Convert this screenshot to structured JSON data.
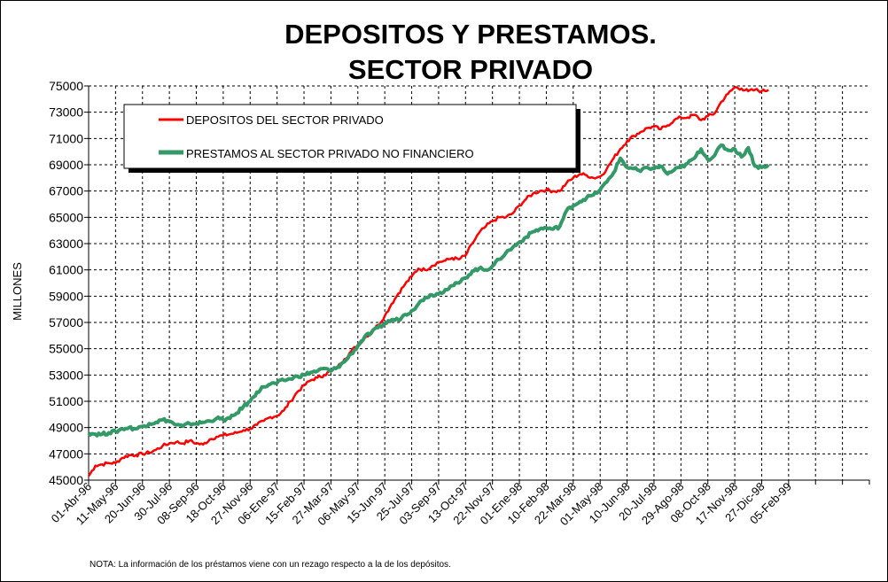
{
  "chart_data": {
    "type": "line",
    "title_line1": "DEPOSITOS Y PRESTAMOS.",
    "title_line2": "SECTOR PRIVADO",
    "ylabel": "MILLONES",
    "xlabel": "",
    "ylim": [
      45000,
      75000
    ],
    "yticks": [
      "45000",
      "47000",
      "49000",
      "51000",
      "53000",
      "55000",
      "57000",
      "59000",
      "61000",
      "63000",
      "65000",
      "67000",
      "69000",
      "71000",
      "73000",
      "75000"
    ],
    "x_tick_labels": [
      "01-Abr-96",
      "11-May-96",
      "20-Jun-96",
      "30-Jul-96",
      "08-Sep-96",
      "18-Oct-96",
      "27-Nov-96",
      "06-Ene-97",
      "15-Feb-97",
      "27-Mar-97",
      "06-May-97",
      "15-Jun-97",
      "25-Jul-97",
      "03-Sep-97",
      "13-Oct-97",
      "22-Nov-97",
      "01-Ene-98",
      "10-Feb-98",
      "22-Mar-98",
      "01-May-98",
      "10-Jun-98",
      "20-Jul-98",
      "29-Ago-98",
      "08-Oct-98",
      "17-Nov-98",
      "27-Dic-98",
      "05-Feb-99"
    ],
    "x_index_range": [
      0,
      29
    ],
    "grid": true,
    "legend_placement": "top-left",
    "series": [
      {
        "name": "DEPOSITOS DEL SECTOR PRIVADO",
        "color": "#ff0000",
        "points": [
          [
            0.0,
            45300
          ],
          [
            0.25,
            46100
          ],
          [
            0.5,
            46200
          ],
          [
            0.75,
            46300
          ],
          [
            1.0,
            46300
          ],
          [
            1.25,
            46700
          ],
          [
            1.5,
            46900
          ],
          [
            1.75,
            46900
          ],
          [
            2.0,
            47000
          ],
          [
            2.25,
            47100
          ],
          [
            2.5,
            47300
          ],
          [
            2.75,
            47600
          ],
          [
            3.0,
            47800
          ],
          [
            3.25,
            47900
          ],
          [
            3.5,
            47800
          ],
          [
            3.75,
            48000
          ],
          [
            4.0,
            47800
          ],
          [
            4.25,
            47700
          ],
          [
            4.5,
            48100
          ],
          [
            4.75,
            48300
          ],
          [
            5.0,
            48400
          ],
          [
            5.25,
            48500
          ],
          [
            5.5,
            48600
          ],
          [
            5.75,
            48800
          ],
          [
            6.0,
            48900
          ],
          [
            6.25,
            49200
          ],
          [
            6.5,
            49500
          ],
          [
            6.75,
            49800
          ],
          [
            7.0,
            49900
          ],
          [
            7.25,
            50300
          ],
          [
            7.5,
            51000
          ],
          [
            7.75,
            51700
          ],
          [
            8.0,
            52200
          ],
          [
            8.25,
            52600
          ],
          [
            8.5,
            52800
          ],
          [
            8.75,
            53000
          ],
          [
            9.0,
            53300
          ],
          [
            9.25,
            53600
          ],
          [
            9.5,
            54200
          ],
          [
            9.75,
            54800
          ],
          [
            10.0,
            55300
          ],
          [
            10.25,
            55800
          ],
          [
            10.5,
            56300
          ],
          [
            10.75,
            56800
          ],
          [
            11.0,
            57500
          ],
          [
            11.25,
            58400
          ],
          [
            11.5,
            59200
          ],
          [
            11.75,
            59900
          ],
          [
            12.0,
            60500
          ],
          [
            12.25,
            61100
          ],
          [
            12.5,
            61000
          ],
          [
            12.75,
            61300
          ],
          [
            13.0,
            61600
          ],
          [
            13.25,
            61700
          ],
          [
            13.5,
            61900
          ],
          [
            13.75,
            61800
          ],
          [
            14.0,
            62100
          ],
          [
            14.25,
            63000
          ],
          [
            14.5,
            63800
          ],
          [
            14.75,
            64300
          ],
          [
            15.0,
            64700
          ],
          [
            15.25,
            65000
          ],
          [
            15.5,
            65000
          ],
          [
            15.75,
            65300
          ],
          [
            16.0,
            65900
          ],
          [
            16.25,
            66400
          ],
          [
            16.5,
            66800
          ],
          [
            16.75,
            67000
          ],
          [
            17.0,
            67100
          ],
          [
            17.25,
            67000
          ],
          [
            17.5,
            67000
          ],
          [
            17.75,
            67600
          ],
          [
            18.0,
            68000
          ],
          [
            18.25,
            68300
          ],
          [
            18.5,
            68200
          ],
          [
            18.75,
            68000
          ],
          [
            19.0,
            68100
          ],
          [
            19.25,
            68700
          ],
          [
            19.5,
            69500
          ],
          [
            19.75,
            70200
          ],
          [
            20.0,
            70800
          ],
          [
            20.25,
            71200
          ],
          [
            20.5,
            71500
          ],
          [
            20.75,
            71800
          ],
          [
            21.0,
            71900
          ],
          [
            21.25,
            71700
          ],
          [
            21.5,
            72000
          ],
          [
            21.75,
            72400
          ],
          [
            22.0,
            72600
          ],
          [
            22.25,
            72600
          ],
          [
            22.5,
            72800
          ],
          [
            22.75,
            72400
          ],
          [
            23.0,
            72700
          ],
          [
            23.25,
            72900
          ],
          [
            23.5,
            73800
          ],
          [
            23.75,
            74400
          ],
          [
            24.0,
            74900
          ],
          [
            24.25,
            74800
          ],
          [
            24.5,
            74600
          ],
          [
            24.75,
            74700
          ],
          [
            25.0,
            74600
          ],
          [
            25.25,
            74700
          ]
        ]
      },
      {
        "name": "PRESTAMOS AL SECTOR PRIVADO NO FINANCIERO",
        "color": "#339966",
        "points": [
          [
            0.0,
            48600
          ],
          [
            0.25,
            48500
          ],
          [
            0.5,
            48500
          ],
          [
            0.75,
            48600
          ],
          [
            1.0,
            48700
          ],
          [
            1.25,
            48900
          ],
          [
            1.5,
            49000
          ],
          [
            1.75,
            48900
          ],
          [
            2.0,
            49100
          ],
          [
            2.25,
            49300
          ],
          [
            2.5,
            49400
          ],
          [
            2.75,
            49600
          ],
          [
            3.0,
            49500
          ],
          [
            3.25,
            49200
          ],
          [
            3.5,
            49100
          ],
          [
            3.75,
            49300
          ],
          [
            4.0,
            49300
          ],
          [
            4.25,
            49400
          ],
          [
            4.5,
            49500
          ],
          [
            4.75,
            49700
          ],
          [
            5.0,
            49600
          ],
          [
            5.25,
            49700
          ],
          [
            5.5,
            50100
          ],
          [
            5.75,
            50600
          ],
          [
            6.0,
            51000
          ],
          [
            6.25,
            51700
          ],
          [
            6.5,
            52100
          ],
          [
            6.75,
            52300
          ],
          [
            7.0,
            52400
          ],
          [
            7.25,
            52600
          ],
          [
            7.5,
            52700
          ],
          [
            7.75,
            52900
          ],
          [
            8.0,
            53000
          ],
          [
            8.25,
            53200
          ],
          [
            8.5,
            53300
          ],
          [
            8.75,
            53500
          ],
          [
            9.0,
            53300
          ],
          [
            9.25,
            53600
          ],
          [
            9.5,
            54000
          ],
          [
            9.75,
            54600
          ],
          [
            10.0,
            55200
          ],
          [
            10.25,
            55900
          ],
          [
            10.5,
            56200
          ],
          [
            10.75,
            56600
          ],
          [
            11.0,
            56900
          ],
          [
            11.25,
            57200
          ],
          [
            11.5,
            57200
          ],
          [
            11.75,
            57600
          ],
          [
            12.0,
            57900
          ],
          [
            12.25,
            58400
          ],
          [
            12.5,
            58900
          ],
          [
            12.75,
            59100
          ],
          [
            13.0,
            59200
          ],
          [
            13.25,
            59500
          ],
          [
            13.5,
            59800
          ],
          [
            13.75,
            60000
          ],
          [
            14.0,
            60400
          ],
          [
            14.25,
            60900
          ],
          [
            14.5,
            61100
          ],
          [
            14.75,
            61000
          ],
          [
            15.0,
            61300
          ],
          [
            15.25,
            61800
          ],
          [
            15.5,
            62300
          ],
          [
            15.75,
            62700
          ],
          [
            16.0,
            63100
          ],
          [
            16.25,
            63500
          ],
          [
            16.5,
            63900
          ],
          [
            16.75,
            64100
          ],
          [
            17.0,
            64200
          ],
          [
            17.25,
            64100
          ],
          [
            17.5,
            64300
          ],
          [
            17.75,
            65500
          ],
          [
            18.0,
            65900
          ],
          [
            18.25,
            66200
          ],
          [
            18.5,
            66500
          ],
          [
            18.75,
            66700
          ],
          [
            19.0,
            67100
          ],
          [
            19.25,
            67700
          ],
          [
            19.5,
            68400
          ],
          [
            19.75,
            69500
          ],
          [
            20.0,
            68800
          ],
          [
            20.25,
            68700
          ],
          [
            20.5,
            68500
          ],
          [
            20.75,
            68800
          ],
          [
            21.0,
            68700
          ],
          [
            21.25,
            68900
          ],
          [
            21.5,
            68300
          ],
          [
            21.75,
            68600
          ],
          [
            22.0,
            68800
          ],
          [
            22.25,
            69100
          ],
          [
            22.5,
            69500
          ],
          [
            22.75,
            70200
          ],
          [
            23.0,
            69400
          ],
          [
            23.25,
            69700
          ],
          [
            23.5,
            70500
          ],
          [
            23.75,
            70100
          ],
          [
            24.0,
            70200
          ],
          [
            24.25,
            69600
          ],
          [
            24.5,
            70300
          ],
          [
            24.75,
            68900
          ],
          [
            25.0,
            68800
          ],
          [
            25.25,
            69000
          ]
        ]
      }
    ],
    "note": "NOTA: La información de los préstamos viene con un rezago respecto a la de los depósitos."
  }
}
